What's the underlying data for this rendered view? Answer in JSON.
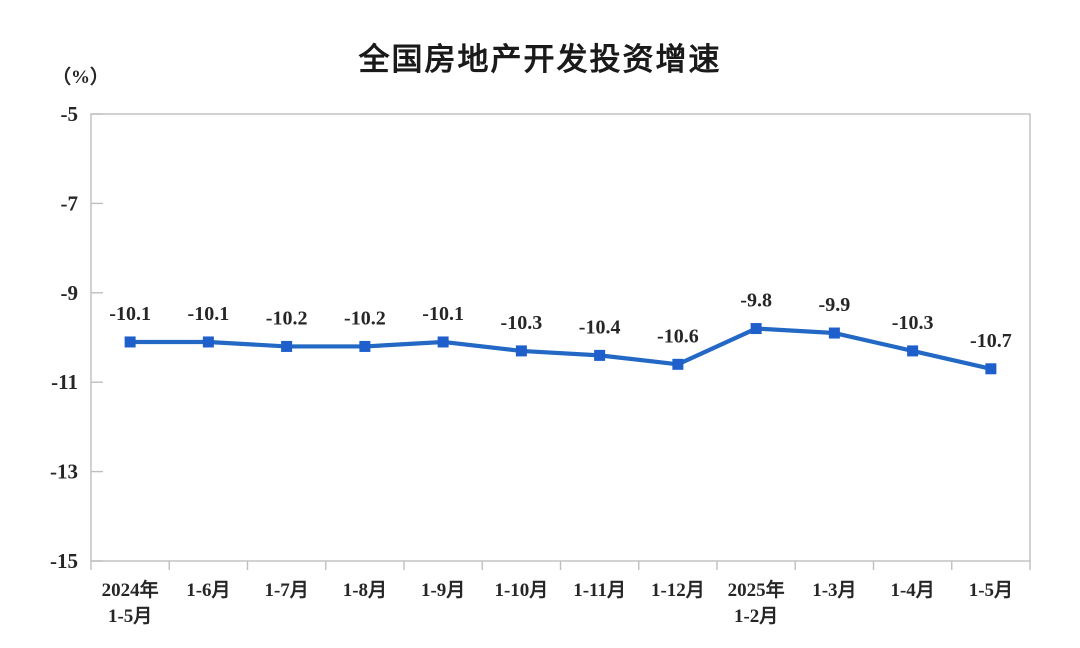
{
  "chart_data": {
    "type": "line",
    "title": "全国房地产开发投资增速",
    "ylabel": "（%）",
    "categories": [
      "2024年\n1-5月",
      "1-6月",
      "1-7月",
      "1-8月",
      "1-9月",
      "1-10月",
      "1-11月",
      "1-12月",
      "2025年\n1-2月",
      "1-3月",
      "1-4月",
      "1-5月"
    ],
    "values": [
      -10.1,
      -10.1,
      -10.2,
      -10.2,
      -10.1,
      -10.3,
      -10.4,
      -10.6,
      -9.8,
      -9.9,
      -10.3,
      -10.7
    ],
    "data_labels": [
      "-10.1",
      "-10.1",
      "-10.2",
      "-10.2",
      "-10.1",
      "-10.3",
      "-10.4",
      "-10.6",
      "-9.8",
      "-9.9",
      "-10.3",
      "-10.7"
    ],
    "y_ticks": [
      "-5",
      "-7",
      "-9",
      "-11",
      "-13",
      "-15"
    ],
    "ylim": [
      -15,
      -5
    ],
    "grid": false,
    "legend_position": "none",
    "line_color": "#2268C4",
    "marker_color": "#1E5FCC",
    "axis_color": "#BFBFBF",
    "text_color": "#262626"
  }
}
